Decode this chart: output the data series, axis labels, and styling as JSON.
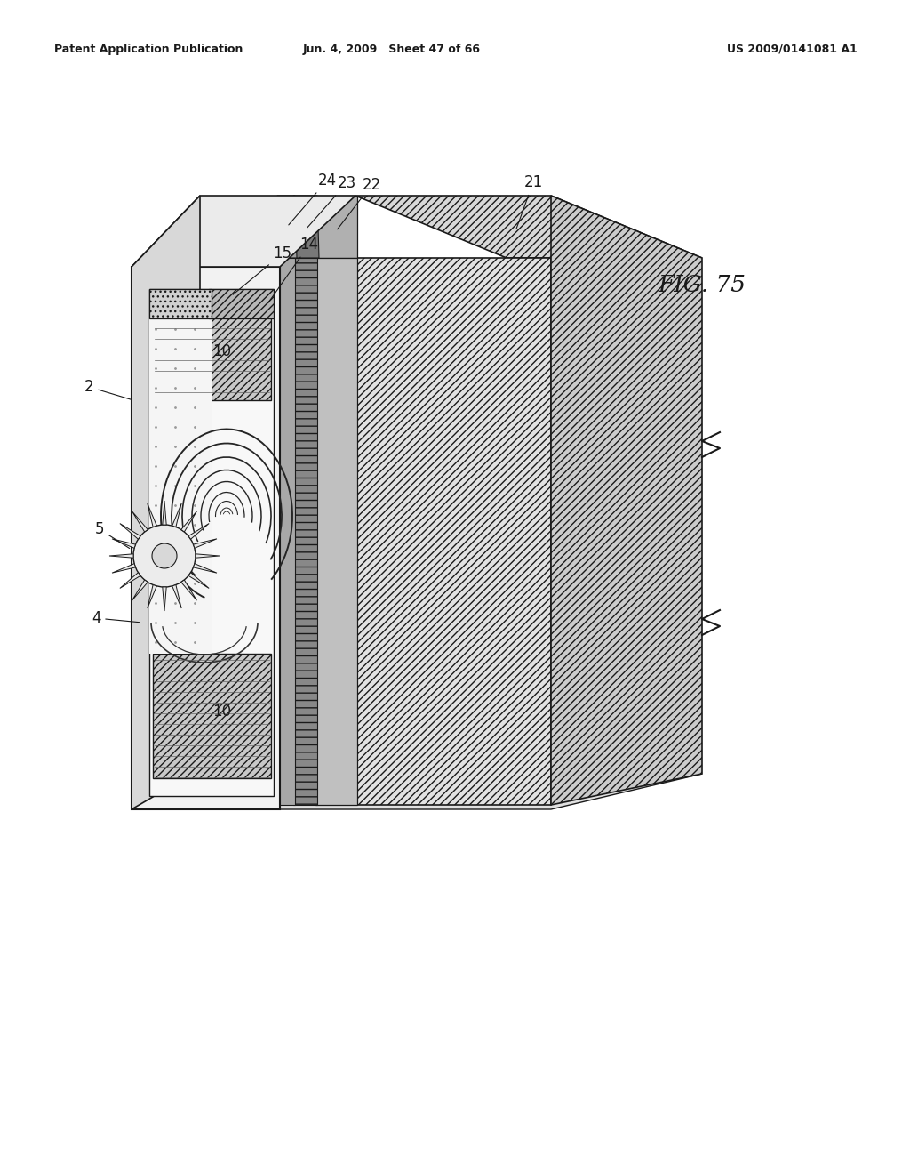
{
  "background_color": "#ffffff",
  "header_left": "Patent Application Publication",
  "header_center": "Jun. 4, 2009   Sheet 47 of 66",
  "header_right": "US 2009/0141081 A1",
  "figure_label": "FIG. 75",
  "lc": "#1a1a1a"
}
